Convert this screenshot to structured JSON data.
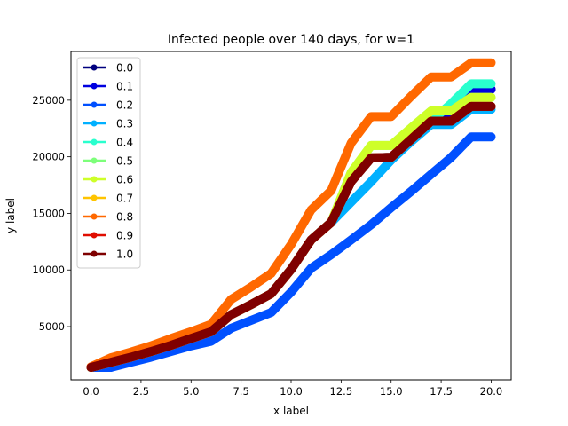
{
  "chart_data": {
    "type": "line",
    "title": "Infected people over 140 days, for w=1",
    "xlabel": "x label",
    "ylabel": "y label",
    "xlim": [
      -1,
      21
    ],
    "ylim": [
      300,
      29300
    ],
    "xticks": [
      0.0,
      2.5,
      5.0,
      7.5,
      10.0,
      12.5,
      15.0,
      17.5,
      20.0
    ],
    "xtick_labels": [
      "0.0",
      "2.5",
      "5.0",
      "7.5",
      "10.0",
      "12.5",
      "15.0",
      "17.5",
      "20.0"
    ],
    "yticks": [
      5000,
      10000,
      15000,
      20000,
      25000
    ],
    "ytick_labels": [
      "5000",
      "10000",
      "15000",
      "20000",
      "25000"
    ],
    "grid": false,
    "legend_position": "top-left",
    "x": [
      0,
      1,
      2,
      3,
      4,
      5,
      6,
      7,
      8,
      9,
      10,
      11,
      12,
      13,
      14,
      15,
      16,
      17,
      18,
      19,
      20
    ],
    "series": [
      {
        "name": "0.0",
        "color": "#00007f",
        "values": [
          1400,
          1850,
          2300,
          2800,
          3350,
          3950,
          4550,
          6050,
          6950,
          7900,
          10050,
          12650,
          14200,
          17800,
          19900,
          19950,
          21550,
          23150,
          23750,
          25900,
          25950
        ]
      },
      {
        "name": "0.1",
        "color": "#0000e0",
        "values": [
          1400,
          1850,
          2300,
          2800,
          3350,
          3950,
          4550,
          6050,
          6950,
          7900,
          10050,
          12650,
          14200,
          17800,
          19900,
          19950,
          21550,
          23150,
          23750,
          25900,
          25950
        ]
      },
      {
        "name": "0.2",
        "color": "#0050ff",
        "values": [
          1400,
          1400,
          1850,
          2300,
          2800,
          3300,
          3700,
          4850,
          5550,
          6250,
          8050,
          10150,
          11350,
          12650,
          14000,
          15500,
          16950,
          18450,
          19950,
          21750,
          21750
        ]
      },
      {
        "name": "0.3",
        "color": "#00b0ff",
        "values": [
          1400,
          1850,
          2300,
          2800,
          3350,
          3950,
          4550,
          6050,
          6950,
          7900,
          10050,
          12650,
          14200,
          16000,
          17800,
          19700,
          21350,
          22850,
          22850,
          24200,
          24200
        ]
      },
      {
        "name": "0.4",
        "color": "#29ffce",
        "values": [
          1400,
          1850,
          2300,
          2800,
          3350,
          3950,
          4550,
          6050,
          6950,
          7900,
          10050,
          12650,
          14200,
          17800,
          19900,
          19950,
          21550,
          23150,
          24700,
          26450,
          26450
        ]
      },
      {
        "name": "0.5",
        "color": "#7dff7a",
        "values": [
          1400,
          1850,
          2300,
          2800,
          3350,
          3950,
          4550,
          6050,
          6950,
          7900,
          10050,
          12650,
          14200,
          18600,
          21000,
          21000,
          22550,
          24050,
          24050,
          25250,
          25250
        ]
      },
      {
        "name": "0.6",
        "color": "#ceff29",
        "values": [
          1400,
          1850,
          2300,
          2800,
          3350,
          3950,
          4550,
          6050,
          6950,
          7900,
          10050,
          12650,
          14200,
          18600,
          21000,
          21000,
          22550,
          24050,
          24050,
          25250,
          25250
        ]
      },
      {
        "name": "0.7",
        "color": "#ffc400",
        "values": [
          1400,
          1850,
          2300,
          2800,
          3350,
          3950,
          4550,
          6050,
          6950,
          7900,
          10050,
          12650,
          14200,
          17800,
          19900,
          19950,
          21550,
          23150,
          23150,
          24450,
          24450
        ]
      },
      {
        "name": "0.8",
        "color": "#ff6800",
        "values": [
          1450,
          2250,
          2750,
          3300,
          3950,
          4550,
          5200,
          7400,
          8500,
          9700,
          12250,
          15300,
          17000,
          21200,
          23550,
          23550,
          25350,
          27050,
          27050,
          28300,
          28300
        ]
      },
      {
        "name": "0.9",
        "color": "#e00d00",
        "values": [
          1400,
          1850,
          2300,
          2800,
          3350,
          3950,
          4550,
          6050,
          6950,
          7900,
          10050,
          12650,
          14200,
          17800,
          19900,
          19950,
          21550,
          23150,
          23150,
          24450,
          24450
        ]
      },
      {
        "name": "1.0",
        "color": "#7f0000",
        "values": [
          1400,
          1850,
          2300,
          2800,
          3350,
          3950,
          4550,
          6050,
          6950,
          7900,
          10050,
          12650,
          14200,
          17800,
          19900,
          19950,
          21550,
          23150,
          23150,
          24450,
          24450
        ]
      }
    ]
  }
}
